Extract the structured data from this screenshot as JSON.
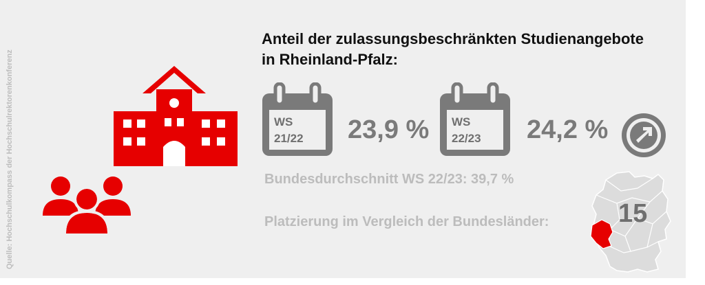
{
  "source": "Quelle: Hochschulkompass der Hochschulrektorenkonferenz",
  "headline": {
    "line1": "Anteil der zulassungsbeschränkten Studienangebote",
    "line2": "in Rheinland-Pfalz:"
  },
  "semesters": [
    {
      "label_top": "WS",
      "label_bottom": "21/22",
      "value": "23,9 %"
    },
    {
      "label_top": "WS",
      "label_bottom": "22/23",
      "value": "24,2 %"
    }
  ],
  "national_average": "Bundesdurchschnitt WS 22/23: 39,7 %",
  "ranking": {
    "label": "Platzierung im Vergleich der Bundesländer:",
    "value": "15"
  },
  "icons": [
    "university-building-icon",
    "people-group-icon",
    "calendar-icon",
    "arrow-right-circle-icon",
    "germany-map-icon"
  ],
  "colors": {
    "accent": "#e60000",
    "gray_dark": "#777777",
    "gray_light": "#bcbcbc",
    "background": "#efefef"
  }
}
